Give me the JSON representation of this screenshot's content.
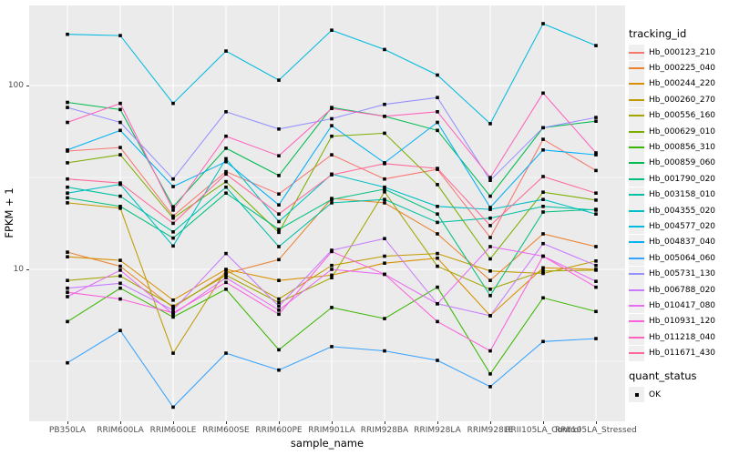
{
  "figure": {
    "background": "#FFFFFF",
    "panel_background": "#EBEBEB",
    "grid_color": "#FFFFFF",
    "tick_label_color": "#4D4D4D",
    "point_color": "#000000"
  },
  "axes": {
    "y_title": "FPKM + 1",
    "x_title": "sample_name",
    "y_scale": "log10",
    "y_ticks": [
      {
        "label": "100",
        "value": 100
      },
      {
        "label": "10",
        "value": 10
      }
    ]
  },
  "legend": {
    "color_title": "tracking_id",
    "shape_title": "quant_status",
    "shape_items": [
      {
        "label": "OK",
        "shape": "filled-square",
        "color": "#000000"
      }
    ]
  },
  "chart_data": {
    "type": "line",
    "title": "",
    "xlabel": "sample_name",
    "ylabel": "FPKM + 1",
    "y_scale": "log10",
    "ylim": [
      1.5,
      270
    ],
    "grid": {
      "major_y": [
        100,
        10
      ],
      "minor_y": [
        31.6,
        3.16
      ],
      "vertical_major": true
    },
    "legend_position": "right",
    "point_shape": "black-square",
    "categories": [
      "PB350LA",
      "RRIM600LA",
      "RRIM600LE",
      "RRIM600SE",
      "RRIM600PE",
      "RRIM901LA",
      "RRIM928BA",
      "RRIM928LA",
      "RRIM928LE",
      "RRII105LA_Control",
      "RRII105LA_Stressed"
    ],
    "series": [
      {
        "name": "Hb_000123_210",
        "color": "#F8766D",
        "values": [
          44,
          46,
          19.5,
          34,
          25.7,
          42,
          31,
          35,
          14.9,
          51,
          34.5
        ]
      },
      {
        "name": "Hb_000225_040",
        "color": "#EA8331",
        "values": [
          12.4,
          10.4,
          6.2,
          9.5,
          11.3,
          24.3,
          23,
          15.6,
          8.7,
          15.6,
          13.3
        ]
      },
      {
        "name": "Hb_000244_220",
        "color": "#D89000",
        "values": [
          11.7,
          11.2,
          6.8,
          10,
          8.7,
          9.3,
          10.8,
          11.5,
          5.6,
          10.2,
          10
        ]
      },
      {
        "name": "Hb_000260_270",
        "color": "#C09B00",
        "values": [
          23,
          21.5,
          3.5,
          9.9,
          6.9,
          10.5,
          11.8,
          12.2,
          9.8,
          9.5,
          11.1
        ]
      },
      {
        "name": "Hb_000556_160",
        "color": "#A3A500",
        "values": [
          8.7,
          9.2,
          6.3,
          9.3,
          6.6,
          9,
          26.4,
          10.4,
          7.8,
          9.8,
          9.9
        ]
      },
      {
        "name": "Hb_000629_010",
        "color": "#7CAE00",
        "values": [
          38,
          42,
          19,
          30,
          15.9,
          53,
          55,
          28.9,
          11.4,
          26.3,
          23.8
        ]
      },
      {
        "name": "Hb_000856_310",
        "color": "#39B600",
        "values": [
          5.2,
          7.9,
          5.5,
          7.8,
          3.65,
          6.2,
          5.4,
          8,
          2.7,
          7,
          5.9
        ]
      },
      {
        "name": "Hb_000859_060",
        "color": "#00BB4E",
        "values": [
          81,
          74,
          21.9,
          45.6,
          32.4,
          76,
          68,
          57,
          25,
          59,
          64
        ]
      },
      {
        "name": "Hb_001790_020",
        "color": "#00BF7D",
        "values": [
          24.5,
          22,
          14.8,
          26,
          16.5,
          24,
          27.3,
          20,
          7.2,
          20.5,
          21.2
        ]
      },
      {
        "name": "Hb_003158_010",
        "color": "#00C1A3",
        "values": [
          28,
          25,
          16,
          28,
          13.3,
          23,
          24,
          18,
          19,
          22,
          21
        ]
      },
      {
        "name": "Hb_004355_020",
        "color": "#00BFC4",
        "values": [
          26,
          29,
          13.4,
          40,
          18.2,
          33,
          28,
          22,
          21.2,
          24,
          20
        ]
      },
      {
        "name": "Hb_004577_020",
        "color": "#00BAE0",
        "values": [
          190,
          187,
          80,
          154,
          107,
          200,
          157,
          114,
          62,
          217,
          165
        ]
      },
      {
        "name": "Hb_004837_040",
        "color": "#00B0F6",
        "values": [
          44.6,
          57,
          28.2,
          38.5,
          22.4,
          60.5,
          38,
          63,
          21.7,
          44.6,
          42
        ]
      },
      {
        "name": "Hb_005064_060",
        "color": "#35A2FF",
        "values": [
          3.1,
          4.65,
          1.78,
          3.5,
          2.83,
          3.8,
          3.6,
          3.2,
          2.3,
          4.05,
          4.2
        ]
      },
      {
        "name": "Hb_005731_130",
        "color": "#9590FF",
        "values": [
          76,
          63,
          31,
          72,
          58,
          66,
          79,
          86,
          30.5,
          59,
          67
        ]
      },
      {
        "name": "Hb_006788_020",
        "color": "#C77CFF",
        "values": [
          7.9,
          8.4,
          6,
          12.2,
          6.3,
          12.7,
          14.7,
          6.5,
          5.6,
          13.8,
          10.5
        ]
      },
      {
        "name": "Hb_010417_080",
        "color": "#E76BF3",
        "values": [
          7.1,
          9.9,
          5.7,
          9,
          6,
          10,
          9.4,
          6.5,
          13.3,
          11.8,
          8.6
        ]
      },
      {
        "name": "Hb_010931_120",
        "color": "#FA62DB",
        "values": [
          7.5,
          6.9,
          5.8,
          8.5,
          5.7,
          12.5,
          9.4,
          5.2,
          3.6,
          11.8,
          8
        ]
      },
      {
        "name": "Hb_011218_040",
        "color": "#FF62BC",
        "values": [
          63,
          80,
          21,
          53,
          41.5,
          75,
          68,
          72,
          31.6,
          91,
          43
        ]
      },
      {
        "name": "Hb_011671_430",
        "color": "#FF6A98",
        "values": [
          31,
          29.5,
          17.8,
          33,
          20,
          32.7,
          37.6,
          35.4,
          17.3,
          32,
          26
        ]
      }
    ]
  }
}
